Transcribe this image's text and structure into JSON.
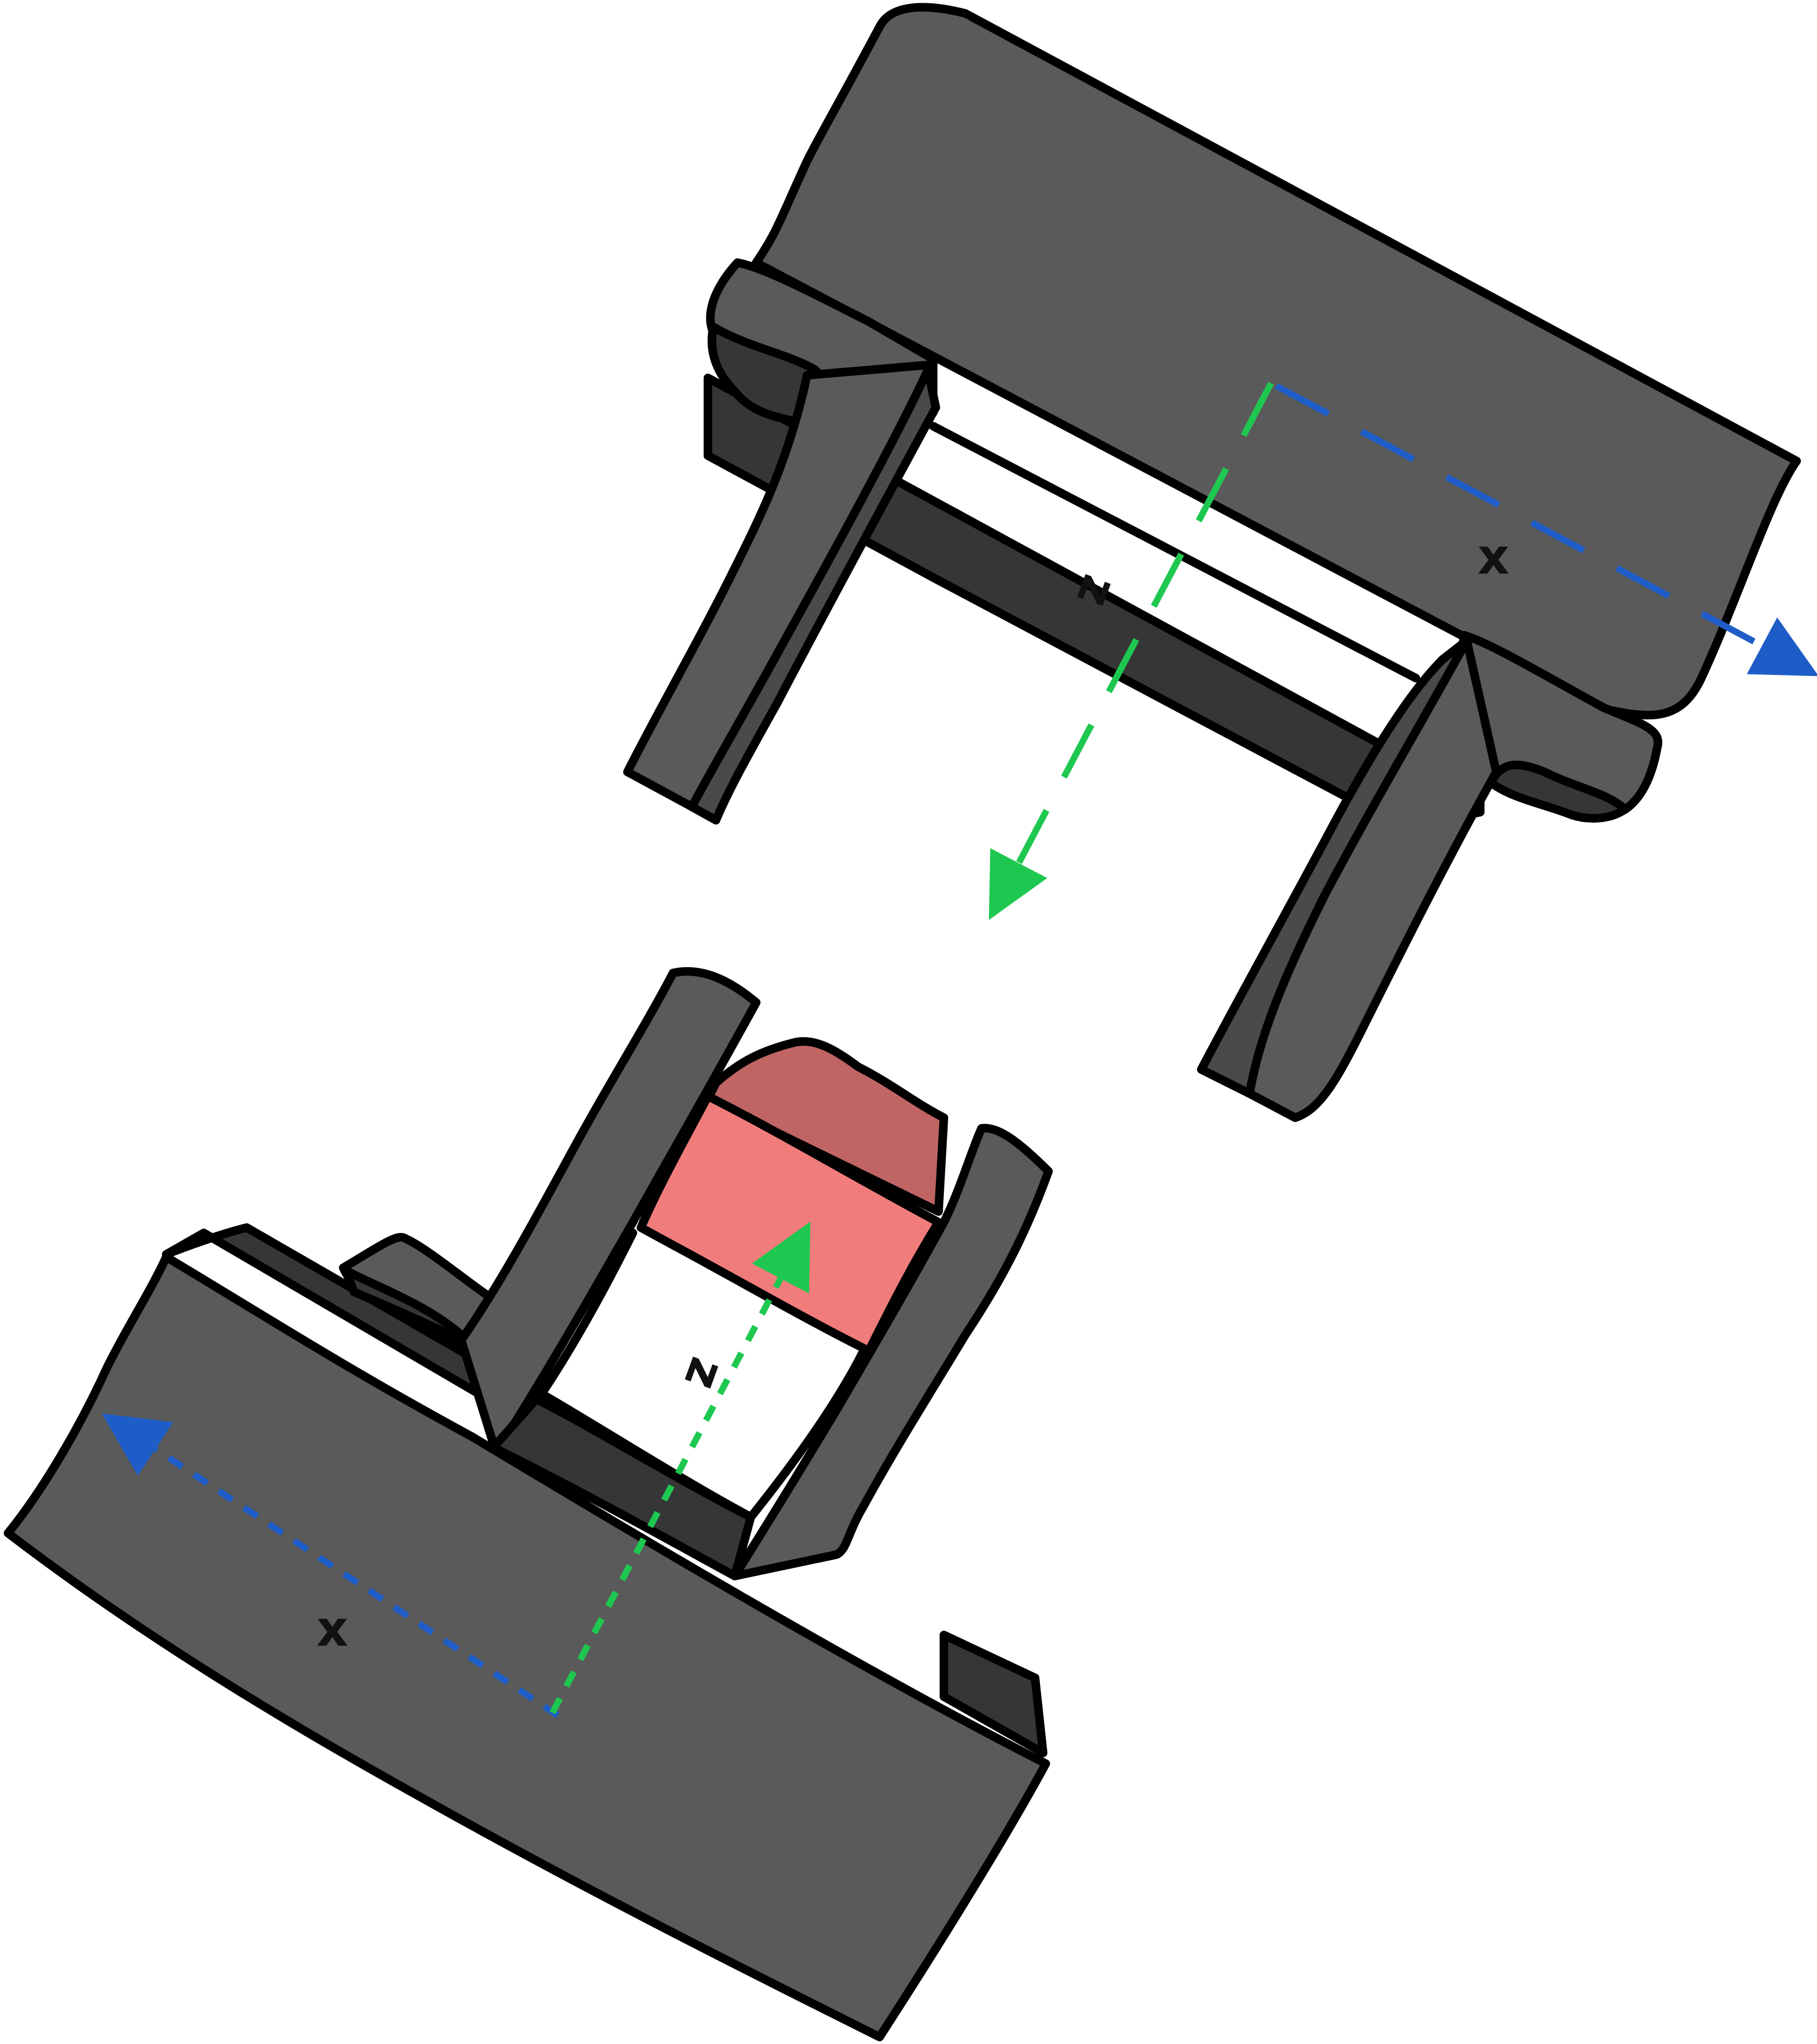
{
  "colors": {
    "body_dark": "#5a5a5a",
    "body_shadow": "#363636",
    "outline": "#000000",
    "block_front": "#f07c7c",
    "block_top": "#c06464",
    "x_axis": "#1e5dc8",
    "z_axis": "#1ec850"
  },
  "upper_frame": {
    "x_label": "x",
    "z_label": "z"
  },
  "lower_frame": {
    "x_label": "x",
    "z_label": "z"
  }
}
